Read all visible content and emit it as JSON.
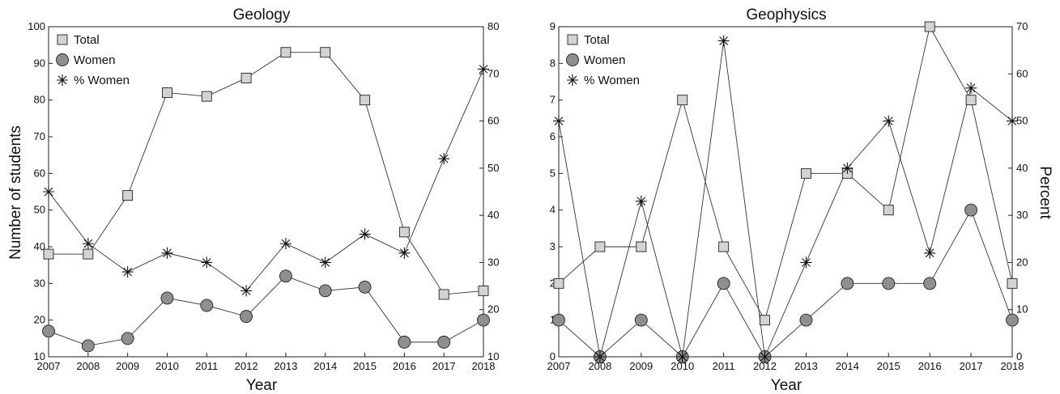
{
  "chart_data": [
    {
      "type": "line",
      "title": "Geology",
      "xlabel": "Year",
      "ylabel": "Number of students",
      "y2label": "",
      "x": [
        2007,
        2008,
        2009,
        2010,
        2011,
        2012,
        2013,
        2014,
        2015,
        2016,
        2017,
        2018
      ],
      "xlim": [
        2007,
        2018
      ],
      "ylim": [
        10,
        100
      ],
      "yticks": [
        10,
        20,
        30,
        40,
        50,
        60,
        70,
        80,
        90,
        100
      ],
      "y2lim": [
        10,
        80
      ],
      "y2ticks": [
        10,
        20,
        30,
        40,
        50,
        60,
        70,
        80
      ],
      "legend_position": "top-left",
      "series": [
        {
          "name": "Total",
          "axis": "left",
          "marker": "square",
          "values": [
            38,
            38,
            54,
            82,
            81,
            86,
            93,
            93,
            80,
            44,
            27,
            28
          ]
        },
        {
          "name": "Women",
          "axis": "left",
          "marker": "circle",
          "values": [
            17,
            13,
            15,
            26,
            24,
            21,
            32,
            28,
            29,
            14,
            14,
            20
          ]
        },
        {
          "name": "% Women",
          "axis": "right",
          "marker": "star",
          "values": [
            45,
            34,
            28,
            32,
            30,
            24,
            34,
            30,
            36,
            32,
            52,
            71
          ]
        }
      ]
    },
    {
      "type": "line",
      "title": "Geophysics",
      "xlabel": "Year",
      "ylabel": "",
      "y2label": "Percent",
      "x": [
        2007,
        2008,
        2009,
        2010,
        2011,
        2012,
        2013,
        2014,
        2015,
        2016,
        2017,
        2018
      ],
      "xlim": [
        2007,
        2018
      ],
      "ylim": [
        0,
        9
      ],
      "yticks": [
        0,
        1,
        2,
        3,
        4,
        5,
        6,
        7,
        8,
        9
      ],
      "y2lim": [
        0,
        70
      ],
      "y2ticks": [
        0,
        10,
        20,
        30,
        40,
        50,
        60,
        70
      ],
      "legend_position": "top-left",
      "series": [
        {
          "name": "Total",
          "axis": "left",
          "marker": "square",
          "values": [
            2,
            3,
            3,
            7,
            3,
            1,
            5,
            5,
            4,
            9,
            7,
            2
          ]
        },
        {
          "name": "Women",
          "axis": "left",
          "marker": "circle",
          "values": [
            1,
            0,
            1,
            0,
            2,
            0,
            1,
            2,
            2,
            2,
            4,
            1
          ]
        },
        {
          "name": "% Women",
          "axis": "right",
          "marker": "star",
          "values": [
            50,
            0,
            33,
            0,
            67,
            0,
            20,
            40,
            50,
            22,
            57,
            50
          ]
        }
      ]
    }
  ]
}
